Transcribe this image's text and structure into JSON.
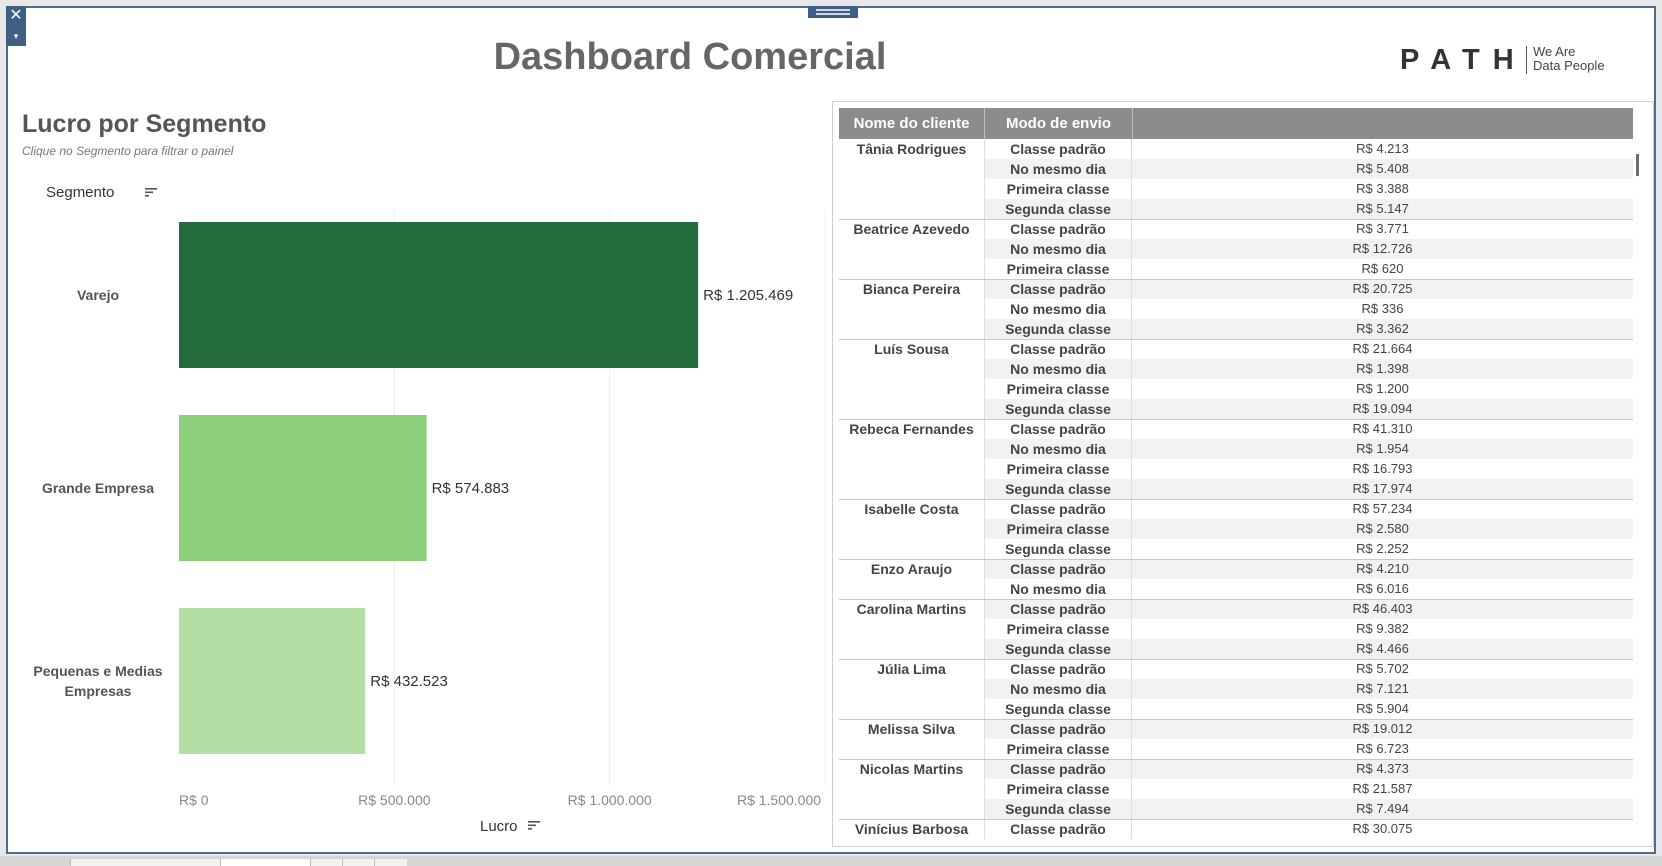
{
  "dashboard": {
    "title": "Dashboard Comercial",
    "logo_word": "PATH",
    "logo_tagline_1": "We Are",
    "logo_tagline_2": "Data People",
    "close_glyph": "✕",
    "dropdown_glyph": "▾"
  },
  "chart": {
    "title": "Lucro por Segmento",
    "subtitle": "Clique no Segmento para filtrar o painel",
    "segment_header": "Segmento",
    "measure_label": "Lucro"
  },
  "chart_data": {
    "type": "bar",
    "orientation": "horizontal",
    "title": "Lucro por Segmento",
    "xlabel": "Lucro",
    "ylabel": "Segmento",
    "categories": [
      "Varejo",
      "Grande Empresa",
      "Pequenas e Medias Empresas"
    ],
    "category_lines": [
      [
        "Varejo"
      ],
      [
        "Grande Empresa"
      ],
      [
        "Pequenas e Medias",
        "Empresas"
      ]
    ],
    "values": [
      1205469,
      574883,
      432523
    ],
    "data_labels": [
      "R$ 1.205.469",
      "R$ 574.883",
      "R$ 432.523"
    ],
    "colors": [
      "#246b3d",
      "#8ccf7a",
      "#b3dfa4"
    ],
    "xlim": [
      0,
      1500000
    ],
    "ticks": [
      0,
      500000,
      1000000,
      1500000
    ],
    "tick_labels": [
      "R$ 0",
      "R$ 500.000",
      "R$ 1.000.000",
      "R$ 1.500.000"
    ],
    "grid": true
  },
  "table": {
    "headers": [
      "Nome do cliente",
      "Modo de envio",
      ""
    ],
    "groups": [
      {
        "name": "Tânia Rodrigues",
        "rows": [
          {
            "mode": "Classe padrão",
            "value": "R$ 4.213"
          },
          {
            "mode": "No mesmo dia",
            "value": "R$ 5.408"
          },
          {
            "mode": "Primeira classe",
            "value": "R$ 3.388"
          },
          {
            "mode": "Segunda classe",
            "value": "R$ 5.147"
          }
        ]
      },
      {
        "name": "Beatrice Azevedo",
        "rows": [
          {
            "mode": "Classe padrão",
            "value": "R$ 3.771"
          },
          {
            "mode": "No mesmo dia",
            "value": "R$ 12.726"
          },
          {
            "mode": "Primeira classe",
            "value": "R$ 620"
          }
        ]
      },
      {
        "name": "Bianca Pereira",
        "rows": [
          {
            "mode": "Classe padrão",
            "value": "R$ 20.725"
          },
          {
            "mode": "No mesmo dia",
            "value": "R$ 336"
          },
          {
            "mode": "Segunda classe",
            "value": "R$ 3.362"
          }
        ]
      },
      {
        "name": "Luís Sousa",
        "rows": [
          {
            "mode": "Classe padrão",
            "value": "R$ 21.664"
          },
          {
            "mode": "No mesmo dia",
            "value": "R$ 1.398"
          },
          {
            "mode": "Primeira classe",
            "value": "R$ 1.200"
          },
          {
            "mode": "Segunda classe",
            "value": "R$ 19.094"
          }
        ]
      },
      {
        "name": "Rebeca Fernandes",
        "rows": [
          {
            "mode": "Classe padrão",
            "value": "R$ 41.310"
          },
          {
            "mode": "No mesmo dia",
            "value": "R$ 1.954"
          },
          {
            "mode": "Primeira classe",
            "value": "R$ 16.793"
          },
          {
            "mode": "Segunda classe",
            "value": "R$ 17.974"
          }
        ]
      },
      {
        "name": "Isabelle Costa",
        "rows": [
          {
            "mode": "Classe padrão",
            "value": "R$ 57.234"
          },
          {
            "mode": "Primeira classe",
            "value": "R$ 2.580"
          },
          {
            "mode": "Segunda classe",
            "value": "R$ 2.252"
          }
        ]
      },
      {
        "name": "Enzo Araujo",
        "rows": [
          {
            "mode": "Classe padrão",
            "value": "R$ 4.210"
          },
          {
            "mode": "No mesmo dia",
            "value": "R$ 6.016"
          }
        ]
      },
      {
        "name": "Carolina Martins",
        "rows": [
          {
            "mode": "Classe padrão",
            "value": "R$ 46.403"
          },
          {
            "mode": "Primeira classe",
            "value": "R$ 9.382"
          },
          {
            "mode": "Segunda classe",
            "value": "R$ 4.466"
          }
        ]
      },
      {
        "name": "Júlia Lima",
        "rows": [
          {
            "mode": "Classe padrão",
            "value": "R$ 5.702"
          },
          {
            "mode": "No mesmo dia",
            "value": "R$ 7.121"
          },
          {
            "mode": "Segunda classe",
            "value": "R$ 5.904"
          }
        ]
      },
      {
        "name": "Melissa Silva",
        "rows": [
          {
            "mode": "Classe padrão",
            "value": "R$ 19.012"
          },
          {
            "mode": "Primeira classe",
            "value": "R$ 6.723"
          }
        ]
      },
      {
        "name": "Nicolas Martins",
        "rows": [
          {
            "mode": "Classe padrão",
            "value": "R$ 4.373"
          },
          {
            "mode": "Primeira classe",
            "value": "R$ 21.587"
          },
          {
            "mode": "Segunda classe",
            "value": "R$ 7.494"
          }
        ]
      },
      {
        "name": "Vinícius Barbosa",
        "rows": [
          {
            "mode": "Classe padrão",
            "value": "R$ 30.075"
          }
        ]
      }
    ]
  }
}
